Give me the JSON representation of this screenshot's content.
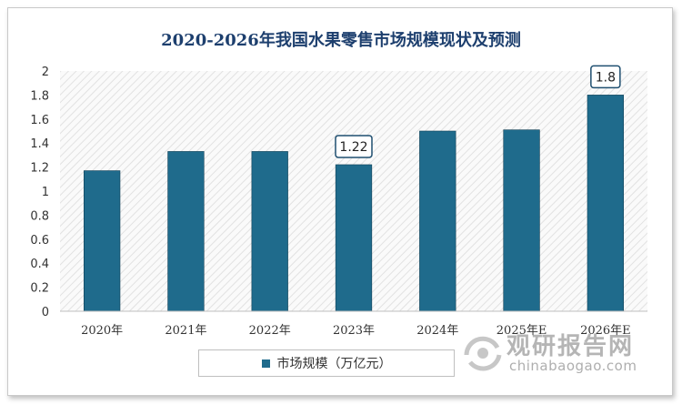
{
  "chart_data": {
    "type": "bar",
    "title": "2020-2026年我国水果零售市场规模现状及预测",
    "categories": [
      "2020年",
      "2021年",
      "2022年",
      "2023年",
      "2024年",
      "2025年E",
      "2026年E"
    ],
    "series": [
      {
        "name": "市场规模（万亿元）",
        "values": [
          1.17,
          1.33,
          1.33,
          1.22,
          1.5,
          1.51,
          1.8
        ]
      }
    ],
    "callouts": [
      {
        "category": "2023年",
        "label": "1.22"
      },
      {
        "category": "2026年E",
        "label": "1.8"
      }
    ],
    "ylim": [
      0,
      2
    ],
    "yticks": [
      "0",
      "0.2",
      "0.4",
      "0.6",
      "0.8",
      "1",
      "1.2",
      "1.4",
      "1.6",
      "1.8",
      "2"
    ],
    "grid": false,
    "legend_position": "bottom",
    "bar_color": "#1f6b8c",
    "plot_background": "hatched"
  },
  "watermark": {
    "cn": "观研报告网",
    "en": "chinabaogao.com"
  }
}
